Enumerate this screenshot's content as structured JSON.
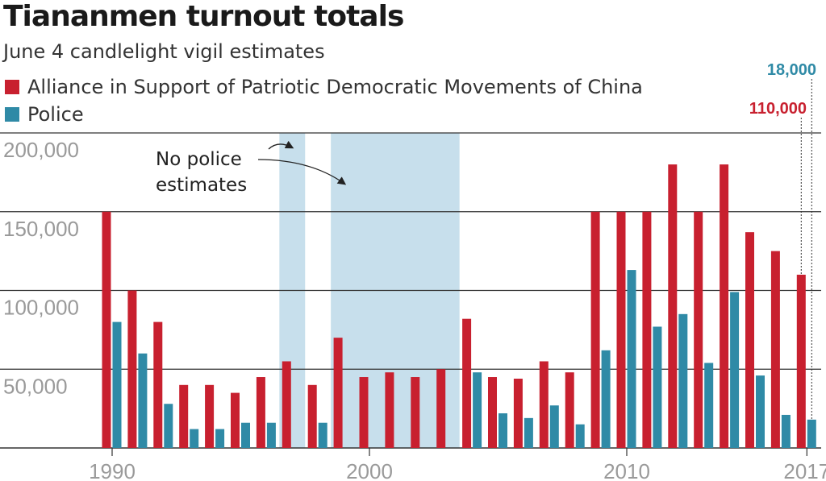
{
  "header": {
    "title": "Tiananmen turnout totals",
    "subtitle": "June 4 candlelight vigil estimates"
  },
  "colors": {
    "alliance": "#c8202f",
    "police": "#2f8aa6",
    "shade": "#c7dfec",
    "grid": "#333333",
    "tick": "#9a9a9a"
  },
  "chart_data": {
    "type": "bar",
    "title": "Tiananmen turnout totals",
    "subtitle": "June 4 candlelight vigil estimates",
    "x": [
      1990,
      1991,
      1992,
      1993,
      1994,
      1995,
      1996,
      1997,
      1998,
      1999,
      2000,
      2001,
      2002,
      2003,
      2004,
      2005,
      2006,
      2007,
      2008,
      2009,
      2010,
      2011,
      2012,
      2013,
      2014,
      2015,
      2016,
      2017
    ],
    "series": [
      {
        "name": "Alliance in Support of Patriotic Democratic Movements of China",
        "values": [
          150000,
          100000,
          80000,
          40000,
          40000,
          35000,
          45000,
          55000,
          40000,
          70000,
          45000,
          48000,
          45000,
          50000,
          82000,
          45000,
          44000,
          55000,
          48000,
          150000,
          150000,
          150000,
          180000,
          150000,
          180000,
          137000,
          125000,
          110000
        ]
      },
      {
        "name": "Police",
        "values": [
          80000,
          60000,
          28000,
          12000,
          12000,
          16000,
          16000,
          null,
          16000,
          null,
          null,
          null,
          null,
          null,
          48000,
          22000,
          19000,
          27000,
          15000,
          62000,
          113000,
          77000,
          85000,
          54000,
          99000,
          46000,
          21000,
          18000
        ]
      }
    ],
    "ylim": [
      0,
      200000
    ],
    "yticks": [
      "50,000",
      "100,000",
      "150,000",
      "200,000"
    ],
    "ytick_values": [
      50000,
      100000,
      150000,
      200000
    ],
    "xticks": [
      "1990",
      "2000",
      "2010",
      "2017"
    ],
    "xtick_values": [
      1990,
      2000,
      2010,
      2017
    ],
    "grid": true,
    "legend": "top-left",
    "shaded_ranges": [
      [
        1997,
        1997
      ],
      [
        1999,
        2003
      ]
    ],
    "annotation": "No police estimates",
    "callouts": {
      "police_2017": "18,000",
      "alliance_2017": "110,000"
    }
  }
}
